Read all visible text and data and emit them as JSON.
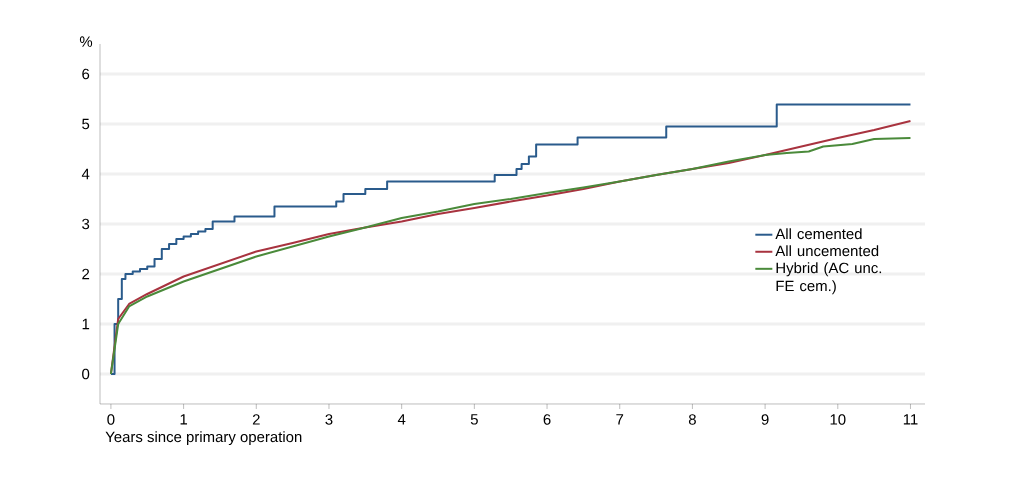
{
  "chart_data": {
    "type": "line",
    "xlabel": "Years since primary operation",
    "ylabel": "%",
    "xlim": [
      -0.15,
      11.2
    ],
    "ylim": [
      -0.6,
      6.6
    ],
    "xticks": [
      0,
      1,
      2,
      3,
      4,
      5,
      6,
      7,
      8,
      9,
      10,
      11
    ],
    "yticks": [
      0,
      1,
      2,
      3,
      4,
      5,
      6
    ],
    "grid": "y",
    "legend": "right",
    "line_style": "solid",
    "marker": "none",
    "series": [
      {
        "name": "All cemented",
        "type": "step",
        "color": "#2a5b8c",
        "x": [
          0,
          0.05,
          0.1,
          0.15,
          0.2,
          0.3,
          0.4,
          0.5,
          0.6,
          0.7,
          0.8,
          0.9,
          1.0,
          1.1,
          1.2,
          1.3,
          1.4,
          1.7,
          2.25,
          3.1,
          3.2,
          3.5,
          3.8,
          5.28,
          5.58,
          5.65,
          5.75,
          5.85,
          6.42,
          7.64,
          9.16,
          11
        ],
        "values": [
          0,
          1.0,
          1.5,
          1.9,
          2.0,
          2.05,
          2.1,
          2.15,
          2.3,
          2.5,
          2.6,
          2.7,
          2.75,
          2.8,
          2.85,
          2.9,
          3.05,
          3.15,
          3.35,
          3.45,
          3.6,
          3.7,
          3.85,
          3.98,
          4.1,
          4.2,
          4.35,
          4.59,
          4.73,
          4.95,
          5.39,
          5.39
        ]
      },
      {
        "name": "All uncemented",
        "color": "#a8333f",
        "x": [
          0,
          0.1,
          0.25,
          0.5,
          1,
          1.5,
          2,
          2.5,
          3,
          3.5,
          4,
          4.5,
          5,
          5.5,
          6,
          6.5,
          7,
          7.5,
          8,
          8.5,
          9,
          9.5,
          10,
          10.5,
          11
        ],
        "values": [
          0,
          1.1,
          1.4,
          1.6,
          1.95,
          2.2,
          2.45,
          2.62,
          2.8,
          2.93,
          3.05,
          3.2,
          3.32,
          3.45,
          3.57,
          3.7,
          3.85,
          3.98,
          4.1,
          4.22,
          4.38,
          4.55,
          4.72,
          4.88,
          5.06
        ]
      },
      {
        "name": "Hybrid (AC unc. FE cem.)",
        "color": "#4a8a3a",
        "x": [
          0,
          0.1,
          0.25,
          0.5,
          1,
          1.5,
          2,
          2.5,
          3,
          3.5,
          4,
          4.5,
          5,
          5.5,
          6,
          6.5,
          7,
          7.5,
          8,
          8.5,
          9,
          9.3,
          9.6,
          9.8,
          10.2,
          10.5,
          11
        ],
        "values": [
          0,
          1.0,
          1.35,
          1.55,
          1.85,
          2.1,
          2.35,
          2.55,
          2.75,
          2.93,
          3.12,
          3.25,
          3.4,
          3.5,
          3.62,
          3.73,
          3.85,
          3.98,
          4.1,
          4.25,
          4.38,
          4.42,
          4.45,
          4.55,
          4.6,
          4.7,
          4.72
        ]
      }
    ]
  }
}
